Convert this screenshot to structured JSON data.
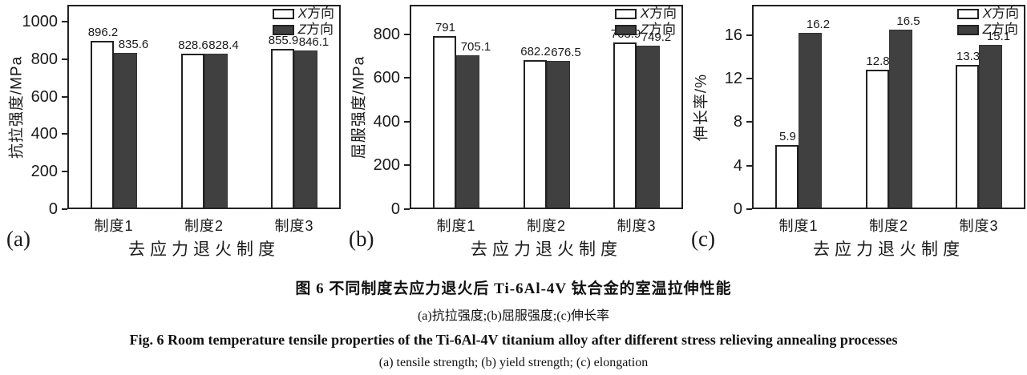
{
  "colors": {
    "x_series_fill": "#ffffff",
    "z_series_fill": "#404040",
    "frame_border": "#222222",
    "text": "#1a1a1a"
  },
  "legend": {
    "entries": [
      {
        "name": "X方向",
        "swatch": "white-outlined"
      },
      {
        "name": "Z方向",
        "swatch": "dark-filled"
      }
    ],
    "position": "top-right"
  },
  "chart_data": [
    {
      "id": "a",
      "type": "bar",
      "panel_label": "(a)",
      "xlabel": "去应力退火制度",
      "ylabel": "抗拉强度/MPa",
      "categories": [
        "制度1",
        "制度2",
        "制度3"
      ],
      "series": [
        {
          "name": "X方向",
          "values": [
            896.2,
            828.6,
            855.9
          ]
        },
        {
          "name": "Z方向",
          "values": [
            835.6,
            828.4,
            846.1
          ]
        }
      ],
      "yticks": [
        0,
        200,
        400,
        600,
        800,
        1000
      ],
      "ylim": [
        0,
        1090
      ],
      "grid": false,
      "legend_position": "top-right"
    },
    {
      "id": "b",
      "type": "bar",
      "panel_label": "(b)",
      "xlabel": "去应力退火制度",
      "ylabel": "屈服强度/MPa",
      "categories": [
        "制度1",
        "制度2",
        "制度3"
      ],
      "series": [
        {
          "name": "X方向",
          "values": [
            791,
            682.2,
            763.9
          ]
        },
        {
          "name": "Z方向",
          "values": [
            705.1,
            676.5,
            749.2
          ]
        }
      ],
      "yticks": [
        0,
        200,
        400,
        600,
        800
      ],
      "ylim": [
        0,
        935
      ],
      "grid": false,
      "legend_position": "top-right"
    },
    {
      "id": "c",
      "type": "bar",
      "panel_label": "(c)",
      "xlabel": "去应力退火制度",
      "ylabel": "伸长率/%",
      "categories": [
        "制度1",
        "制度2",
        "制度3"
      ],
      "series": [
        {
          "name": "X方向",
          "values": [
            5.9,
            12.8,
            13.3
          ]
        },
        {
          "name": "Z方向",
          "values": [
            16.2,
            16.5,
            15.1
          ]
        }
      ],
      "yticks": [
        0,
        4,
        8,
        12,
        16
      ],
      "ylim": [
        0,
        18.8
      ],
      "grid": false,
      "legend_position": "top-right"
    }
  ],
  "caption": {
    "cn_title": "图 6  不同制度去应力退火后 Ti-6Al-4V 钛合金的室温拉伸性能",
    "cn_sub": "(a)抗拉强度;(b)屈服强度;(c)伸长率",
    "en_title": "Fig. 6  Room temperature tensile properties of the Ti-6Al-4V titanium alloy after different stress relieving annealing processes",
    "en_sub": "(a) tensile strength; (b) yield strength; (c) elongation"
  }
}
